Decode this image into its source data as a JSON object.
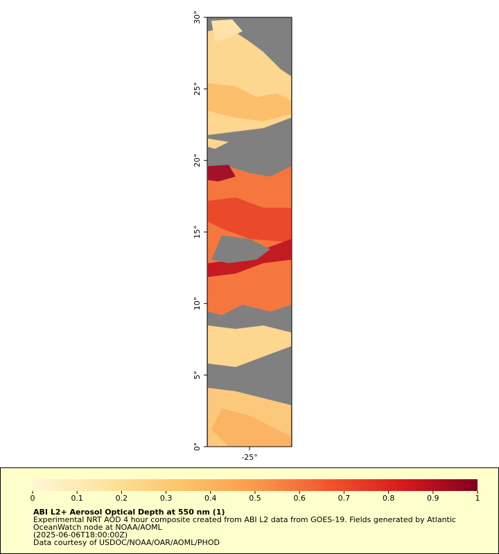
{
  "chart_data": {
    "type": "map",
    "title": "ABI L2+ Aerosol Optical Depth at 550 nm (1)",
    "description": [
      "Experimental NRT AOD 4 hour composite created from ABI L2 data from GOES-19. Fields generated by Atlantic",
      "OceanWatch node at NOAA/AOML",
      "(2025-06-06T18:00:00Z)",
      "Data courtesy of USDOC/NOAA/OAR/AOML/PHOD"
    ],
    "ylim": [
      0,
      30
    ],
    "yticks": [
      {
        "value": 0,
        "label": "0°"
      },
      {
        "value": 5,
        "label": "5°"
      },
      {
        "value": 10,
        "label": "10°"
      },
      {
        "value": 15,
        "label": "15°"
      },
      {
        "value": 20,
        "label": "20°"
      },
      {
        "value": 25,
        "label": "25°"
      },
      {
        "value": 30,
        "label": "30°"
      }
    ],
    "xlim": [
      -28,
      -22
    ],
    "xticks": [
      {
        "value": -25,
        "label": "-25°"
      }
    ],
    "colorbar": {
      "lim": [
        0,
        1
      ],
      "ticks": [
        0,
        0.1,
        0.2,
        0.3,
        0.4,
        0.5,
        0.6,
        0.7,
        0.8,
        0.9,
        1
      ],
      "colors": [
        "#fff6d5",
        "#fde3a0",
        "#fdc46a",
        "#fb9a4a",
        "#f2552e",
        "#d7191c",
        "#800020"
      ]
    }
  }
}
